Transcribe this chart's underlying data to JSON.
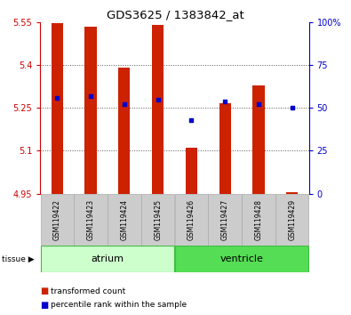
{
  "title": "GDS3625 / 1383842_at",
  "samples": [
    "GSM119422",
    "GSM119423",
    "GSM119424",
    "GSM119425",
    "GSM119426",
    "GSM119427",
    "GSM119428",
    "GSM119429"
  ],
  "red_values": [
    5.545,
    5.535,
    5.39,
    5.54,
    5.11,
    5.265,
    5.33,
    4.955
  ],
  "blue_percentile": [
    56,
    57,
    52,
    55,
    43,
    54,
    52,
    50
  ],
  "ymin": 4.95,
  "ymax": 5.55,
  "yticks": [
    4.95,
    5.1,
    5.25,
    5.4,
    5.55
  ],
  "ytick_labels": [
    "4.95",
    "5.1",
    "5.25",
    "5.4",
    "5.55"
  ],
  "right_yticks": [
    0,
    25,
    50,
    75,
    100
  ],
  "right_ytick_labels": [
    "0",
    "25",
    "50",
    "75",
    "100%"
  ],
  "tissue_groups": [
    {
      "label": "atrium",
      "samples": [
        0,
        1,
        2,
        3
      ],
      "color": "#ccffcc",
      "edge": "#44bb44"
    },
    {
      "label": "ventricle",
      "samples": [
        4,
        5,
        6,
        7
      ],
      "color": "#55dd55",
      "edge": "#44bb44"
    }
  ],
  "bar_color": "#cc2200",
  "dot_color": "#0000cc",
  "bar_width": 0.35,
  "grid_color": "#555555",
  "bg_color": "#ffffff",
  "left_axis_color": "#cc0000",
  "right_axis_color": "#0000cc",
  "tissue_label": "tissue",
  "legend_red": "transformed count",
  "legend_blue": "percentile rank within the sample",
  "sample_bg": "#cccccc",
  "sample_edge": "#aaaaaa"
}
